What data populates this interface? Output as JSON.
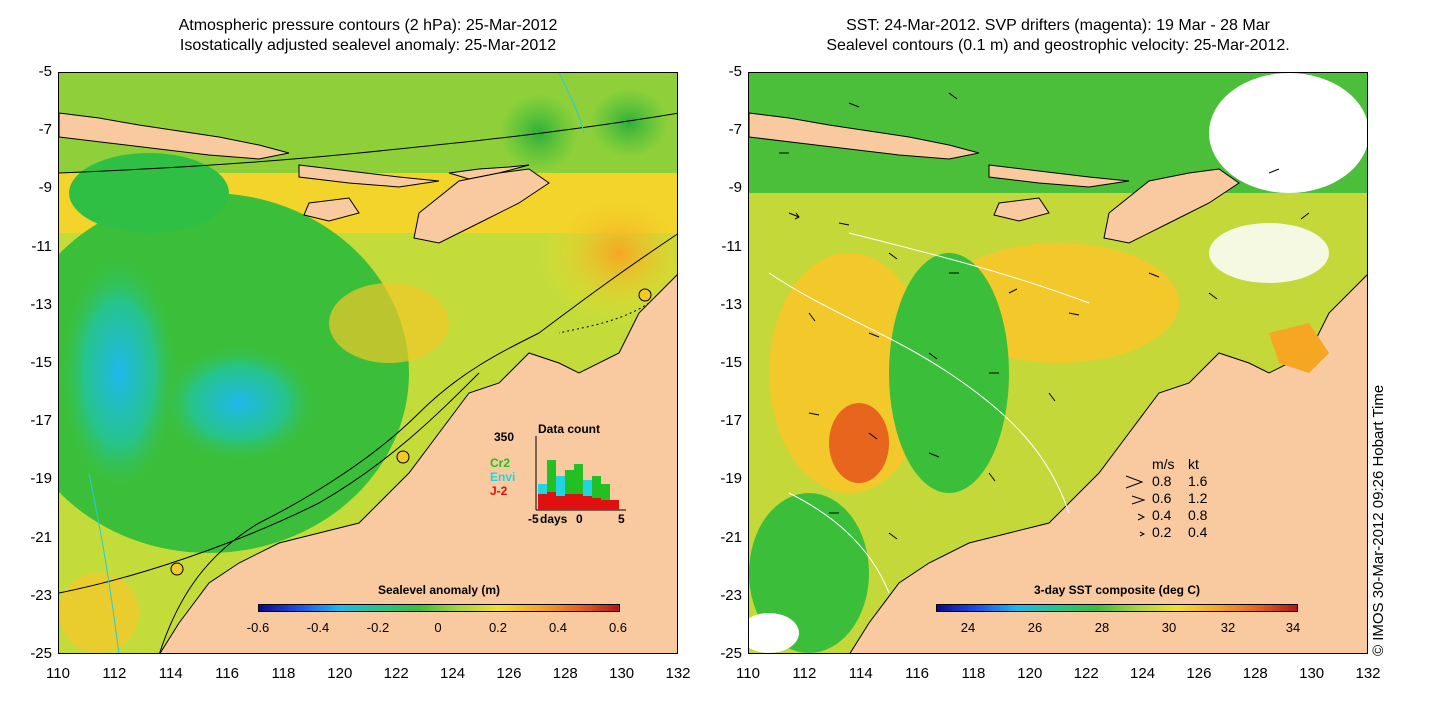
{
  "left_panel": {
    "title_line1": "Atmospheric pressure contours (2 hPa): 25-Mar-2012",
    "title_line2": "Isostatically adjusted sealevel anomaly: 25-Mar-2012",
    "colorbar_label": "Sealevel anomaly (m)",
    "colorbar_ticks": [
      "-0.6",
      "-0.4",
      "-0.2",
      "0",
      "0.2",
      "0.4",
      "0.6"
    ],
    "inset": {
      "title": "Data count",
      "y_top": "350",
      "x_label": "days",
      "x_ticks": [
        "-5",
        "0",
        "5"
      ],
      "missions": [
        {
          "name": "Cr2",
          "color": "#22c022"
        },
        {
          "name": "Envi",
          "color": "#22d4e0"
        },
        {
          "name": "J-2",
          "color": "#e01010"
        }
      ]
    }
  },
  "right_panel": {
    "title_line1": "SST: 24-Mar-2012. SVP drifters (magenta): 19 Mar - 28 Mar",
    "title_line2": "Sealevel contours (0.1 m) and geostrophic velocity: 25-Mar-2012.",
    "colorbar_label": "3-day SST composite (deg C)",
    "colorbar_ticks": [
      "24",
      "26",
      "28",
      "30",
      "32",
      "34"
    ],
    "velocity_legend": {
      "header_ms": "m/s",
      "header_kt": "kt",
      "rows": [
        {
          "ms": "0.8",
          "kt": "1.6"
        },
        {
          "ms": "0.6",
          "kt": "1.2"
        },
        {
          "ms": "0.4",
          "kt": "0.8"
        },
        {
          "ms": "0.2",
          "kt": "0.4"
        }
      ]
    }
  },
  "axes": {
    "y_ticks": [
      "-5",
      "-7",
      "-9",
      "-11",
      "-13",
      "-15",
      "-17",
      "-19",
      "-21",
      "-23",
      "-25"
    ],
    "x_ticks": [
      "110",
      "112",
      "114",
      "116",
      "118",
      "120",
      "122",
      "124",
      "126",
      "128",
      "130",
      "132"
    ],
    "lon_range": [
      110,
      132
    ],
    "lat_range": [
      -25,
      -5
    ]
  },
  "colors": {
    "land": "#f9c9a0",
    "sea_low": "#1fb8ea",
    "sea_mid": "#3bbf3a",
    "sea_high": "#f5a623"
  },
  "copyright": "© IMOS 30-Mar-2012 09:26 Hobart Time"
}
